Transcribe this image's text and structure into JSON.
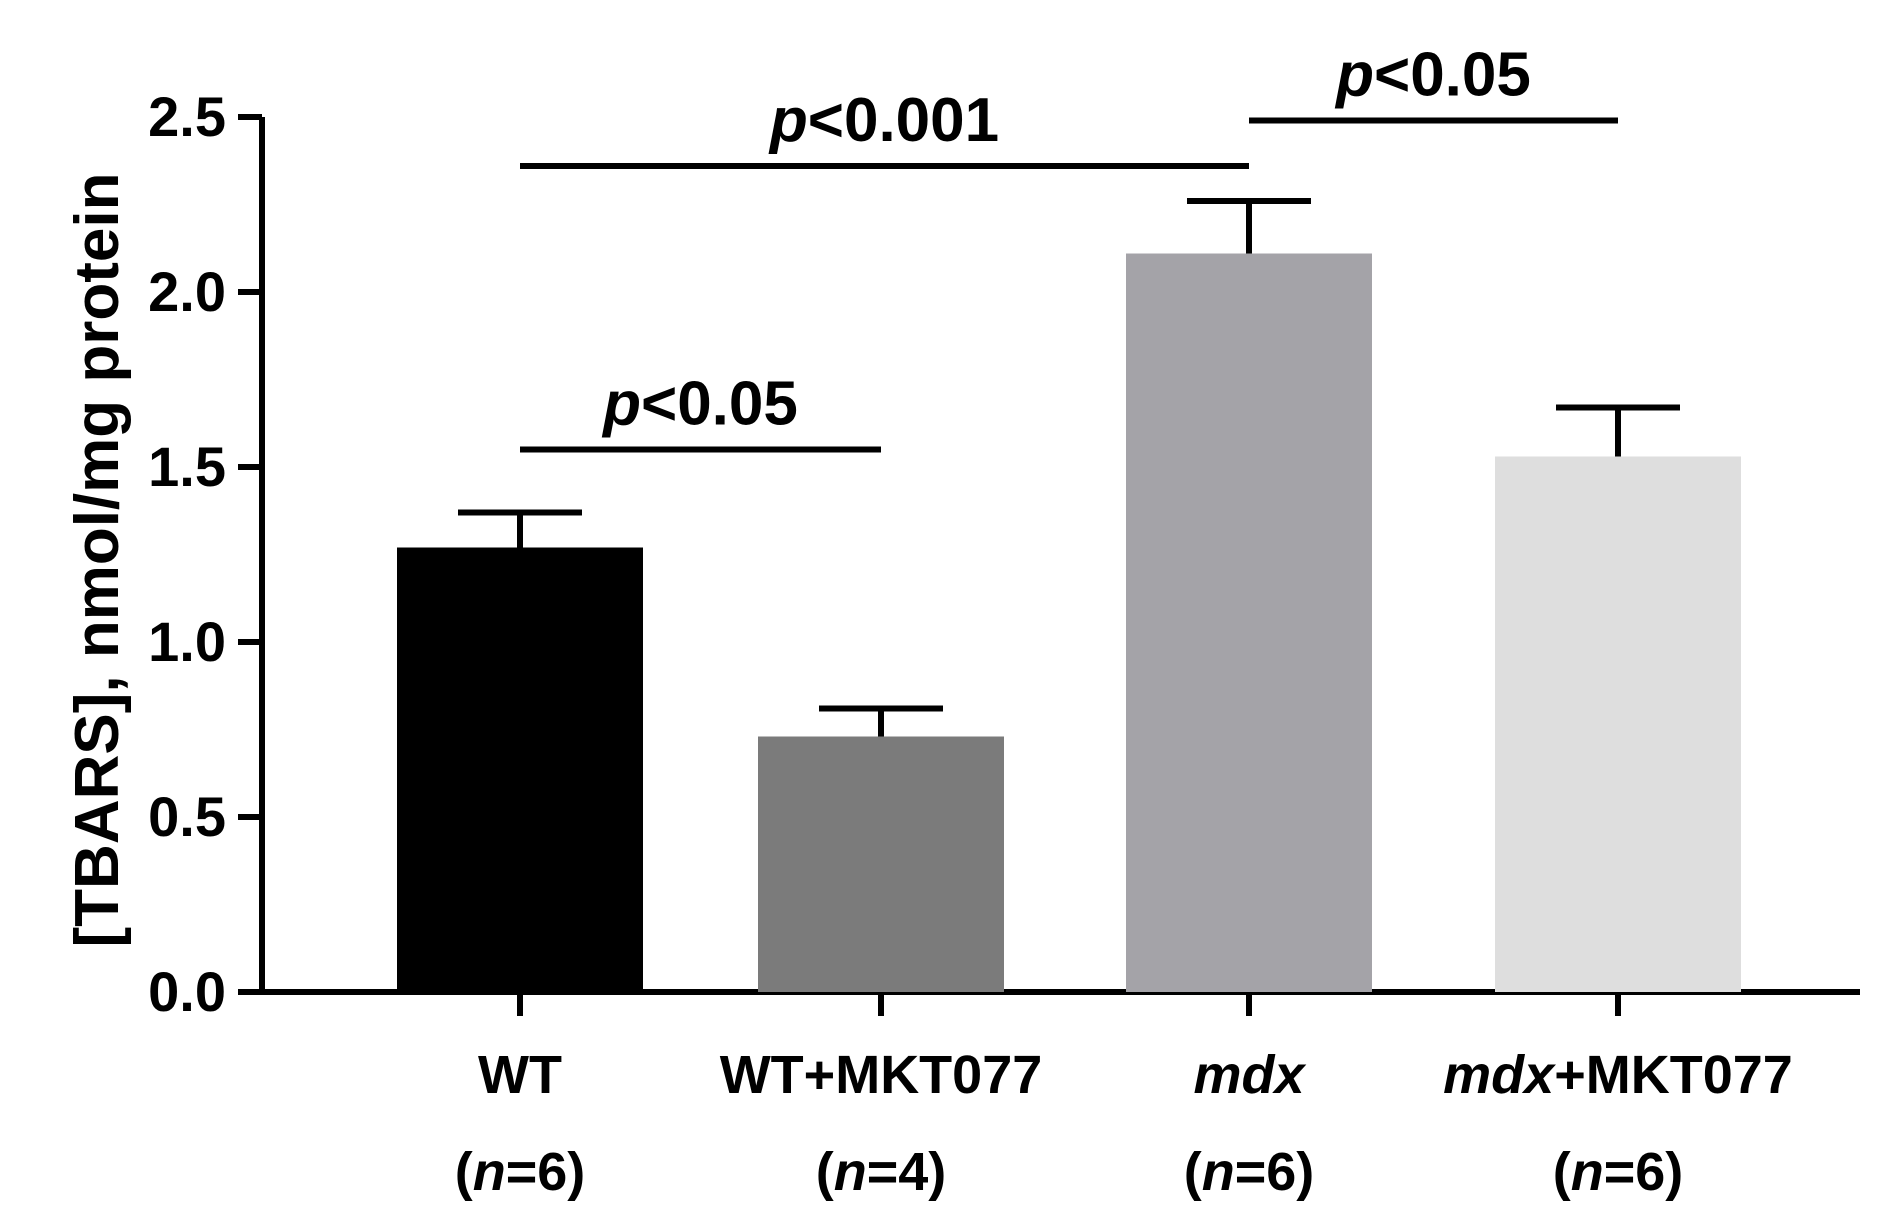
{
  "chart_data": {
    "type": "bar",
    "ylabel": "[TBARS], nmol/mg protein",
    "ylim": [
      0,
      2.5
    ],
    "yticks": [
      "0.0",
      "0.5",
      "1.0",
      "1.5",
      "2.0",
      "2.5"
    ],
    "ytick_values": [
      0,
      0.5,
      1.0,
      1.5,
      2.0,
      2.5
    ],
    "bars": [
      {
        "name_plain": "WT",
        "name_italic": "",
        "n_prefix": "(",
        "n_italic": "n",
        "n_suffix": "=6)",
        "value": 1.27,
        "error": 0.1,
        "color": "#000000"
      },
      {
        "name_plain": "WT+MKT077",
        "name_italic": "",
        "n_prefix": "(",
        "n_italic": "n",
        "n_suffix": "=4)",
        "value": 0.73,
        "error": 0.08,
        "color": "#7b7b7b"
      },
      {
        "name_plain": "",
        "name_italic": "mdx",
        "n_prefix": "(",
        "n_italic": "n",
        "n_suffix": "=6)",
        "value": 2.11,
        "error": 0.15,
        "color": "#a4a3a8"
      },
      {
        "name_plain": "+MKT077",
        "name_italic": "mdx",
        "n_prefix": "(",
        "n_italic": "n",
        "n_suffix": "=6)",
        "value": 1.53,
        "error": 0.14,
        "color": "#dedede"
      }
    ],
    "comparisons": [
      {
        "from": 0,
        "to": 1,
        "level": 1.55,
        "p_italic": "p",
        "p_text": "<0.05"
      },
      {
        "from": 0,
        "to": 2,
        "level": 2.36,
        "p_italic": "p",
        "p_text": "<0.001"
      },
      {
        "from": 2,
        "to": 3,
        "level": 2.49,
        "p_italic": "p",
        "p_text": "<0.05"
      }
    ]
  }
}
